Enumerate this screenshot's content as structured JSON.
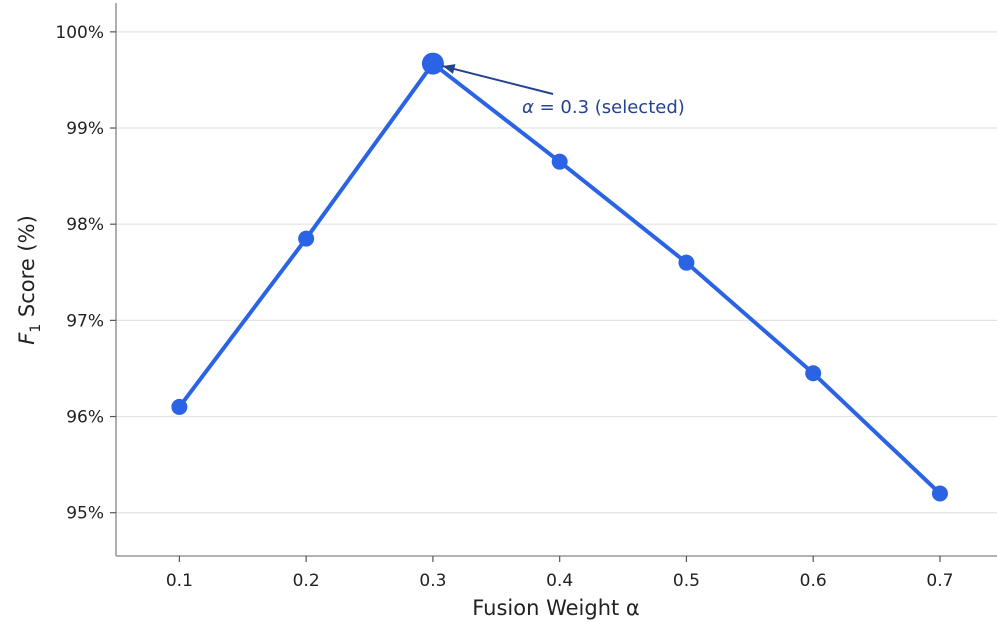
{
  "chart_data": {
    "type": "line",
    "title": "",
    "xlabel": "Fusion Weight α",
    "ylabel_main": "F",
    "ylabel_sub": "1",
    "ylabel_rest": " Score (%)",
    "x": [
      0.1,
      0.2,
      0.3,
      0.4,
      0.5,
      0.6,
      0.7
    ],
    "x_tick_labels": [
      "0.1",
      "0.2",
      "0.3",
      "0.4",
      "0.5",
      "0.6",
      "0.7"
    ],
    "xlim": [
      0.05,
      0.745
    ],
    "y_ticks": [
      95,
      96,
      97,
      98,
      99,
      100
    ],
    "y_tick_labels": [
      "95%",
      "96%",
      "97%",
      "98%",
      "99%",
      "100%"
    ],
    "ylim": [
      94.55,
      100.3
    ],
    "grid": "horizontal",
    "series": [
      {
        "values": [
          96.1,
          97.85,
          99.67,
          98.65,
          97.6,
          96.45,
          95.2
        ],
        "color": "#2a63e3"
      }
    ],
    "highlight_index": 2,
    "annotation": {
      "text_italic": "α",
      "text_rest": " = 0.3 (selected)",
      "color": "#24428f"
    }
  }
}
